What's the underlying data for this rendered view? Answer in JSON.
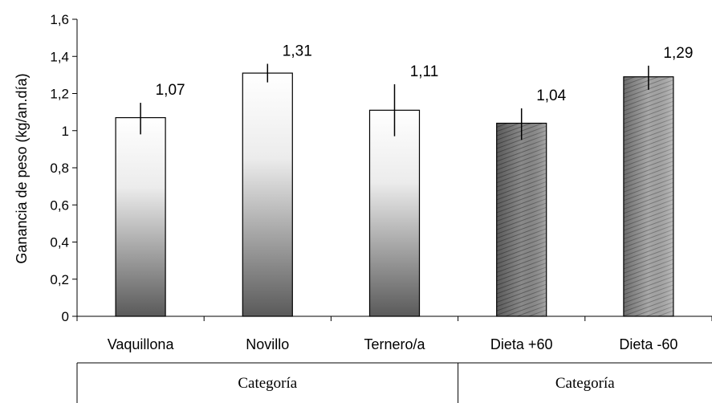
{
  "chart_data": {
    "type": "bar",
    "ylabel": "Ganancia de peso (kg/an.día)",
    "xlabel": "",
    "ylim": [
      0,
      1.6
    ],
    "yticks": [
      "0",
      "0,2",
      "0,4",
      "0,6",
      "0,8",
      "1",
      "1,2",
      "1,4",
      "1,6"
    ],
    "grid": false,
    "categories": [
      "Vaquillona",
      "Novillo",
      "Ternero/a",
      "Dieta +60",
      "Dieta -60"
    ],
    "values": [
      1.07,
      1.31,
      1.11,
      1.04,
      1.29
    ],
    "value_labels": [
      "1,07",
      "1,31",
      "1,11",
      "1,04",
      "1,29"
    ],
    "error_bars": [
      {
        "low": 0.98,
        "high": 1.15
      },
      {
        "low": 1.26,
        "high": 1.36
      },
      {
        "low": 0.97,
        "high": 1.25
      },
      {
        "low": 0.95,
        "high": 1.12
      },
      {
        "low": 1.22,
        "high": 1.35
      }
    ],
    "bar_styles": [
      "gradient",
      "gradient",
      "gradient",
      "hatched",
      "hatched"
    ],
    "groups": [
      {
        "label": "Categoría",
        "members": [
          "Vaquillona",
          "Novillo",
          "Ternero/a"
        ]
      },
      {
        "label": "Categoría",
        "members": [
          "Dieta +60",
          "Dieta -60"
        ]
      }
    ]
  }
}
